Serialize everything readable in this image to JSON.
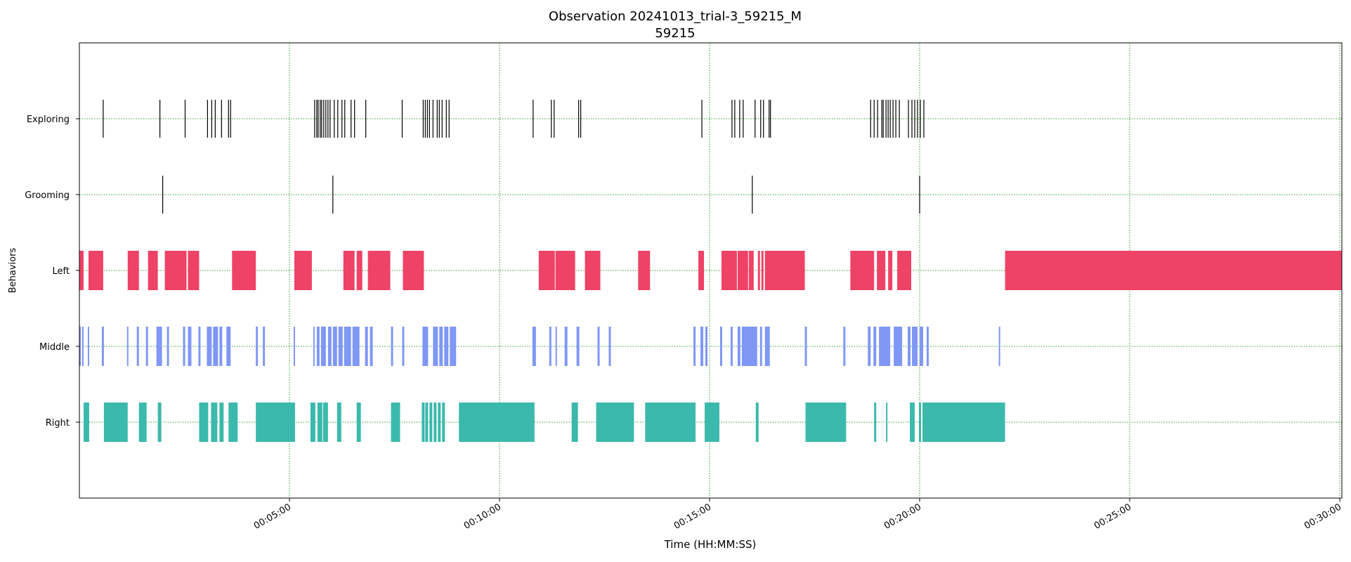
{
  "chart_data": {
    "type": "timeline",
    "title": "Observation 20241013_trial-3_59215_M",
    "subtitle": "59215",
    "xlabel": "Time (HH:MM:SS)",
    "ylabel": "Behaviors",
    "x_unit": "seconds",
    "xlim": [
      0,
      1803
    ],
    "x_ticks": [
      {
        "value": 300,
        "label": "00:05:00"
      },
      {
        "value": 600,
        "label": "00:10:00"
      },
      {
        "value": 900,
        "label": "00:15:00"
      },
      {
        "value": 1200,
        "label": "00:20:00"
      },
      {
        "value": 1500,
        "label": "00:25:00"
      },
      {
        "value": 1800,
        "label": "00:30:00"
      }
    ],
    "grid": true,
    "grid_color": "#2ca02c",
    "categories": [
      "Exploring",
      "Grooming",
      "Left",
      "Middle",
      "Right"
    ],
    "series": [
      {
        "name": "Exploring",
        "kind": "events",
        "color": "#000000",
        "times": [
          34,
          115,
          151,
          183,
          189,
          194,
          203,
          213,
          216,
          336,
          339,
          341,
          344,
          346,
          349,
          352,
          355,
          358,
          364,
          369,
          375,
          379,
          388,
          393,
          409,
          461,
          491,
          494,
          497,
          500,
          505,
          511,
          514,
          518,
          524,
          528,
          648,
          674,
          678,
          713,
          716,
          889,
          932,
          936,
          943,
          948,
          965,
          973,
          977,
          985,
          987,
          1130,
          1135,
          1140,
          1146,
          1148,
          1152,
          1155,
          1158,
          1162,
          1166,
          1171,
          1184,
          1189,
          1193,
          1197,
          1201,
          1206
        ]
      },
      {
        "name": "Grooming",
        "kind": "events",
        "color": "#000000",
        "times": [
          119,
          362,
          961,
          1200
        ]
      },
      {
        "name": "Left",
        "kind": "intervals",
        "color": "#ee4266",
        "intervals": [
          [
            0,
            6
          ],
          [
            13,
            34
          ],
          [
            69,
            85
          ],
          [
            98,
            112
          ],
          [
            122,
            153
          ],
          [
            155,
            171
          ],
          [
            218,
            252
          ],
          [
            307,
            332
          ],
          [
            377,
            393
          ],
          [
            396,
            404
          ],
          [
            412,
            444
          ],
          [
            462,
            492
          ],
          [
            656,
            679
          ],
          [
            680,
            708
          ],
          [
            722,
            744
          ],
          [
            798,
            815
          ],
          [
            884,
            892
          ],
          [
            917,
            939
          ],
          [
            940,
            955
          ],
          [
            956,
            963
          ],
          [
            969,
            972
          ],
          [
            974,
            977
          ],
          [
            979,
            1036
          ],
          [
            1101,
            1135
          ],
          [
            1139,
            1151
          ],
          [
            1155,
            1161
          ],
          [
            1168,
            1188
          ],
          [
            1322,
            1803
          ]
        ]
      },
      {
        "name": "Middle",
        "kind": "intervals",
        "color": "#7f97f5",
        "intervals": [
          [
            0,
            2
          ],
          [
            4,
            6
          ],
          [
            12,
            14
          ],
          [
            32,
            35
          ],
          [
            68,
            70
          ],
          [
            82,
            85
          ],
          [
            95,
            98
          ],
          [
            110,
            118
          ],
          [
            125,
            128
          ],
          [
            148,
            151
          ],
          [
            155,
            160
          ],
          [
            170,
            173
          ],
          [
            182,
            189
          ],
          [
            191,
            198
          ],
          [
            200,
            204
          ],
          [
            210,
            216
          ],
          [
            252,
            255
          ],
          [
            262,
            265
          ],
          [
            306,
            308
          ],
          [
            334,
            336
          ],
          [
            339,
            343
          ],
          [
            345,
            352
          ],
          [
            355,
            360
          ],
          [
            362,
            368
          ],
          [
            370,
            376
          ],
          [
            378,
            388
          ],
          [
            390,
            400
          ],
          [
            408,
            412
          ],
          [
            415,
            419
          ],
          [
            445,
            448
          ],
          [
            461,
            464
          ],
          [
            490,
            498
          ],
          [
            505,
            512
          ],
          [
            514,
            519
          ],
          [
            521,
            527
          ],
          [
            529,
            538
          ],
          [
            647,
            652
          ],
          [
            671,
            674
          ],
          [
            680,
            682
          ],
          [
            693,
            697
          ],
          [
            710,
            714
          ],
          [
            740,
            743
          ],
          [
            756,
            759
          ],
          [
            877,
            880
          ],
          [
            887,
            891
          ],
          [
            894,
            897
          ],
          [
            915,
            918
          ],
          [
            930,
            933
          ],
          [
            940,
            944
          ],
          [
            946,
            968
          ],
          [
            972,
            975
          ],
          [
            979,
            986
          ],
          [
            1036,
            1039
          ],
          [
            1091,
            1094
          ],
          [
            1126,
            1130
          ],
          [
            1134,
            1138
          ],
          [
            1142,
            1158
          ],
          [
            1163,
            1175
          ],
          [
            1183,
            1187
          ],
          [
            1189,
            1197
          ],
          [
            1200,
            1205
          ],
          [
            1210,
            1213
          ],
          [
            1313,
            1315
          ]
        ]
      },
      {
        "name": "Right",
        "kind": "intervals",
        "color": "#3bb9ac",
        "intervals": [
          [
            6,
            14
          ],
          [
            35,
            69
          ],
          [
            85,
            96
          ],
          [
            112,
            117
          ],
          [
            171,
            184
          ],
          [
            188,
            197
          ],
          [
            200,
            206
          ],
          [
            213,
            226
          ],
          [
            252,
            308
          ],
          [
            330,
            337
          ],
          [
            340,
            347
          ],
          [
            348,
            355
          ],
          [
            368,
            374
          ],
          [
            396,
            402
          ],
          [
            445,
            458
          ],
          [
            489,
            493
          ],
          [
            494,
            498
          ],
          [
            500,
            504
          ],
          [
            506,
            510
          ],
          [
            512,
            516
          ],
          [
            518,
            522
          ],
          [
            542,
            650
          ],
          [
            703,
            712
          ],
          [
            738,
            792
          ],
          [
            808,
            880
          ],
          [
            893,
            914
          ],
          [
            966,
            970
          ],
          [
            1037,
            1095
          ],
          [
            1135,
            1138
          ],
          [
            1152,
            1154
          ],
          [
            1186,
            1193
          ],
          [
            1199,
            1202
          ],
          [
            1204,
            1322
          ]
        ]
      }
    ]
  }
}
